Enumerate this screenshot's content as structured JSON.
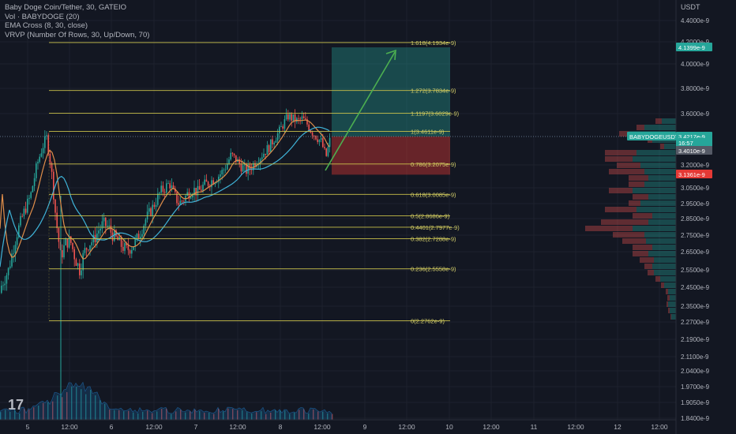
{
  "legend": {
    "symbol_line": "Baby Doge Coin/Tether, 30, GATEIO",
    "volume_line": "Vol · BABYDOGE (20)",
    "ema_line": "EMA Cross (8, 30, close)",
    "vrvp_line": "VRVP (Number Of Rows, 30, Up/Down, 70)"
  },
  "price_axis": {
    "title": "USDT",
    "ticks": [
      "4.4000e-9",
      "4.2000e-9",
      "4.0000e-9",
      "3.8000e-9",
      "3.6000e-9",
      "3.2000e-9",
      "3.0500e-9",
      "2.9500e-9",
      "2.8500e-9",
      "2.7500e-9",
      "2.6500e-9",
      "2.5500e-9",
      "2.4500e-9",
      "2.3500e-9",
      "2.2700e-9",
      "2.1900e-9",
      "2.1100e-9",
      "2.0400e-9",
      "1.9700e-9",
      "1.9050e-9",
      "1.8400e-9"
    ]
  },
  "time_axis": {
    "ticks": [
      "5",
      "12:00",
      "6",
      "12:00",
      "7",
      "12:00",
      "8",
      "12:00",
      "9",
      "12:00",
      "10",
      "12:00",
      "11",
      "12:00",
      "12",
      "12:00"
    ]
  },
  "fib_levels": [
    {
      "ratio": "1.618",
      "price": 4.1934e-09,
      "label": "1.618(4.1934e-9)"
    },
    {
      "ratio": "1.272",
      "price": 3.7834e-09,
      "label": "1.272(3.7834e-9)"
    },
    {
      "ratio": "1.1197",
      "price": 3.6029e-09,
      "label": "1.1197(3.6029e-9)"
    },
    {
      "ratio": "1",
      "price": 3.4611e-09,
      "label": "1(3.4611e-9)"
    },
    {
      "ratio": "0.786",
      "price": 3.2075e-09,
      "label": "0.786(3.2075e-9)"
    },
    {
      "ratio": "0.618",
      "price": 3.0085e-09,
      "label": "0.618(3.0085e-9)"
    },
    {
      "ratio": "0.5",
      "price": 2.8686e-09,
      "label": "0.5(2.8686e-9)"
    },
    {
      "ratio": "0.4401",
      "price": 2.7977e-09,
      "label": "0.4401(2.7977e-9)"
    },
    {
      "ratio": "0.382",
      "price": 2.7288e-09,
      "label": "0.382(2.7288e-9)"
    },
    {
      "ratio": "0.236",
      "price": 2.5558e-09,
      "label": "0.236(2.5558e-9)"
    },
    {
      "ratio": "0",
      "price": 2.2762e-09,
      "label": "0(2.2762e-9)"
    }
  ],
  "price_tags": [
    {
      "text": "4.1399e-9",
      "color": "#26a69a"
    },
    {
      "text": "BABYDOGEUSDT",
      "color": "#26a69a"
    },
    {
      "text": "3.4217e-9",
      "color": "#26a69a"
    },
    {
      "text": "16:57",
      "color": "#26a69a"
    },
    {
      "text": "3.4010e-9",
      "color": "#555a66"
    },
    {
      "text": "3.1361e-9",
      "color": "#e53935"
    }
  ],
  "colors": {
    "background": "#131722",
    "fib_line": "#c9c04a",
    "fib_label": "#d4cf6a",
    "candle_up": "#26a69a",
    "candle_down": "#ef5350",
    "ema_fast": "#e08e4a",
    "ema_slow": "#3fb3d8",
    "target_zone": "rgba(38,166,154,0.35)",
    "stop_zone": "rgba(229,57,53,0.4)",
    "arrow": "#4caf50",
    "vrvp_up": "rgba(38,166,154,0.35)",
    "vrvp_down": "rgba(239,83,80,0.35)"
  },
  "logo_text": "17"
}
